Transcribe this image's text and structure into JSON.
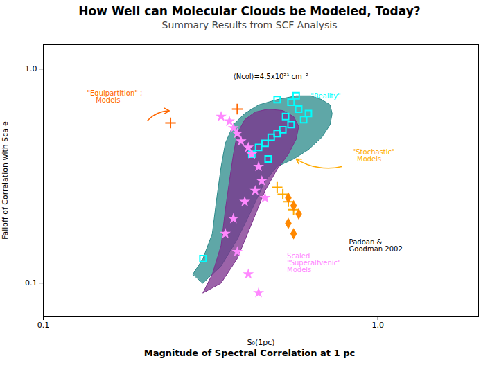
{
  "chart_data": {
    "type": "scatter",
    "title": "How Well can Molecular Clouds be Modeled, Today?",
    "subtitle": "Summary Results from SCF Analysis",
    "xlabel": "S₀(1pc)",
    "ylabel": "Falloff of Correlation with Scale",
    "caption": "Magnitude of Spectral Correlation at 1 pc",
    "log": true,
    "grid": false,
    "xlim": [
      0.1,
      2.0
    ],
    "ylim": [
      0.07,
      1.3
    ],
    "xticks": [
      0.1,
      {
        "value": 1.0,
        "label": "1.0"
      }
    ],
    "yticks": [
      0.1,
      {
        "value": 1.0,
        "label": "1.0"
      }
    ],
    "series": [
      {
        "type": "polygon",
        "color": "#2a8a8a",
        "x": [
          0.28,
          0.3,
          0.32,
          0.33,
          0.34,
          0.35,
          0.37,
          0.4,
          0.44,
          0.5,
          0.57,
          0.63,
          0.68,
          0.72,
          0.73,
          0.72,
          0.68,
          0.62,
          0.56,
          0.5,
          0.46,
          0.42,
          0.38,
          0.34,
          0.3
        ],
        "y": [
          0.11,
          0.13,
          0.17,
          0.25,
          0.35,
          0.45,
          0.55,
          0.62,
          0.68,
          0.72,
          0.75,
          0.75,
          0.72,
          0.68,
          0.62,
          0.55,
          0.48,
          0.42,
          0.38,
          0.35,
          0.3,
          0.22,
          0.16,
          0.12,
          0.1
        ]
      },
      {
        "type": "polygon",
        "color": "#7b2f8c",
        "x": [
          0.3,
          0.32,
          0.34,
          0.35,
          0.36,
          0.37,
          0.38,
          0.4,
          0.43,
          0.47,
          0.52,
          0.56,
          0.58,
          0.57,
          0.54,
          0.5,
          0.46,
          0.42,
          0.38,
          0.34
        ],
        "y": [
          0.09,
          0.11,
          0.15,
          0.22,
          0.3,
          0.4,
          0.5,
          0.58,
          0.63,
          0.65,
          0.64,
          0.6,
          0.54,
          0.47,
          0.4,
          0.34,
          0.27,
          0.19,
          0.13,
          0.1
        ]
      },
      {
        "type": "scatter",
        "marker": "open_square",
        "color": "#00ffff",
        "x": [
          0.5,
          0.55,
          0.58,
          0.62,
          0.6,
          0.55,
          0.52,
          0.5,
          0.48,
          0.46,
          0.44,
          0.42,
          0.3,
          0.47,
          0.53,
          0.57
        ],
        "y": [
          0.72,
          0.7,
          0.65,
          0.62,
          0.58,
          0.55,
          0.52,
          0.5,
          0.48,
          0.45,
          0.43,
          0.4,
          0.13,
          0.38,
          0.6,
          0.75
        ]
      },
      {
        "type": "scatter",
        "marker": "star",
        "color": "#ff88ff",
        "x": [
          0.34,
          0.36,
          0.37,
          0.38,
          0.39,
          0.41,
          0.42,
          0.44,
          0.45,
          0.43,
          0.4,
          0.37,
          0.35,
          0.38,
          0.41,
          0.44,
          0.46
        ],
        "y": [
          0.6,
          0.57,
          0.53,
          0.5,
          0.46,
          0.43,
          0.4,
          0.35,
          0.3,
          0.27,
          0.24,
          0.2,
          0.17,
          0.14,
          0.11,
          0.09,
          0.25
        ]
      },
      {
        "type": "scatter",
        "marker": "plus",
        "color": "#ff6600",
        "x": [
          0.24,
          0.38
        ],
        "y": [
          0.56,
          0.65
        ]
      },
      {
        "type": "scatter",
        "marker": "plus",
        "color": "#ffaa00",
        "x": [
          0.5,
          0.52,
          0.54,
          0.56
        ],
        "y": [
          0.28,
          0.26,
          0.24,
          0.22
        ]
      },
      {
        "type": "scatter",
        "marker": "diamond",
        "color": "#ff8800",
        "x": [
          0.54,
          0.56,
          0.58,
          0.54,
          0.56
        ],
        "y": [
          0.25,
          0.23,
          0.21,
          0.19,
          0.17
        ]
      }
    ],
    "annotations": [
      {
        "text": "\"Reality\"",
        "x": 0.63,
        "y": 0.73,
        "color": "#00ffff"
      },
      {
        "text": "\"Equipartition\" ;\n    Models",
        "x": 0.135,
        "y": 0.7,
        "color": "#ff6600"
      },
      {
        "text": "\"Stochastic\"\n  Models",
        "x": 0.84,
        "y": 0.37,
        "color": "#ffaa00"
      },
      {
        "text": "Scaled\n\"Superalfvenic\"\nModels",
        "x": 0.535,
        "y": 0.112,
        "color": "#ff88ff"
      },
      {
        "text": "⟨Ncol⟩=4.5x10²¹ cm⁻²",
        "x": 0.37,
        "y": 0.9
      },
      {
        "text": "Padoan &\nGoodman 2002",
        "x": 0.82,
        "y": 0.14
      }
    ],
    "arrows": [
      {
        "x1": 0.205,
        "y1": 0.575,
        "x2": 0.238,
        "y2": 0.638,
        "color": "#ff6600"
      },
      {
        "x1": 0.78,
        "y1": 0.35,
        "x2": 0.57,
        "y2": 0.38,
        "color": "#ffaa00"
      }
    ]
  }
}
